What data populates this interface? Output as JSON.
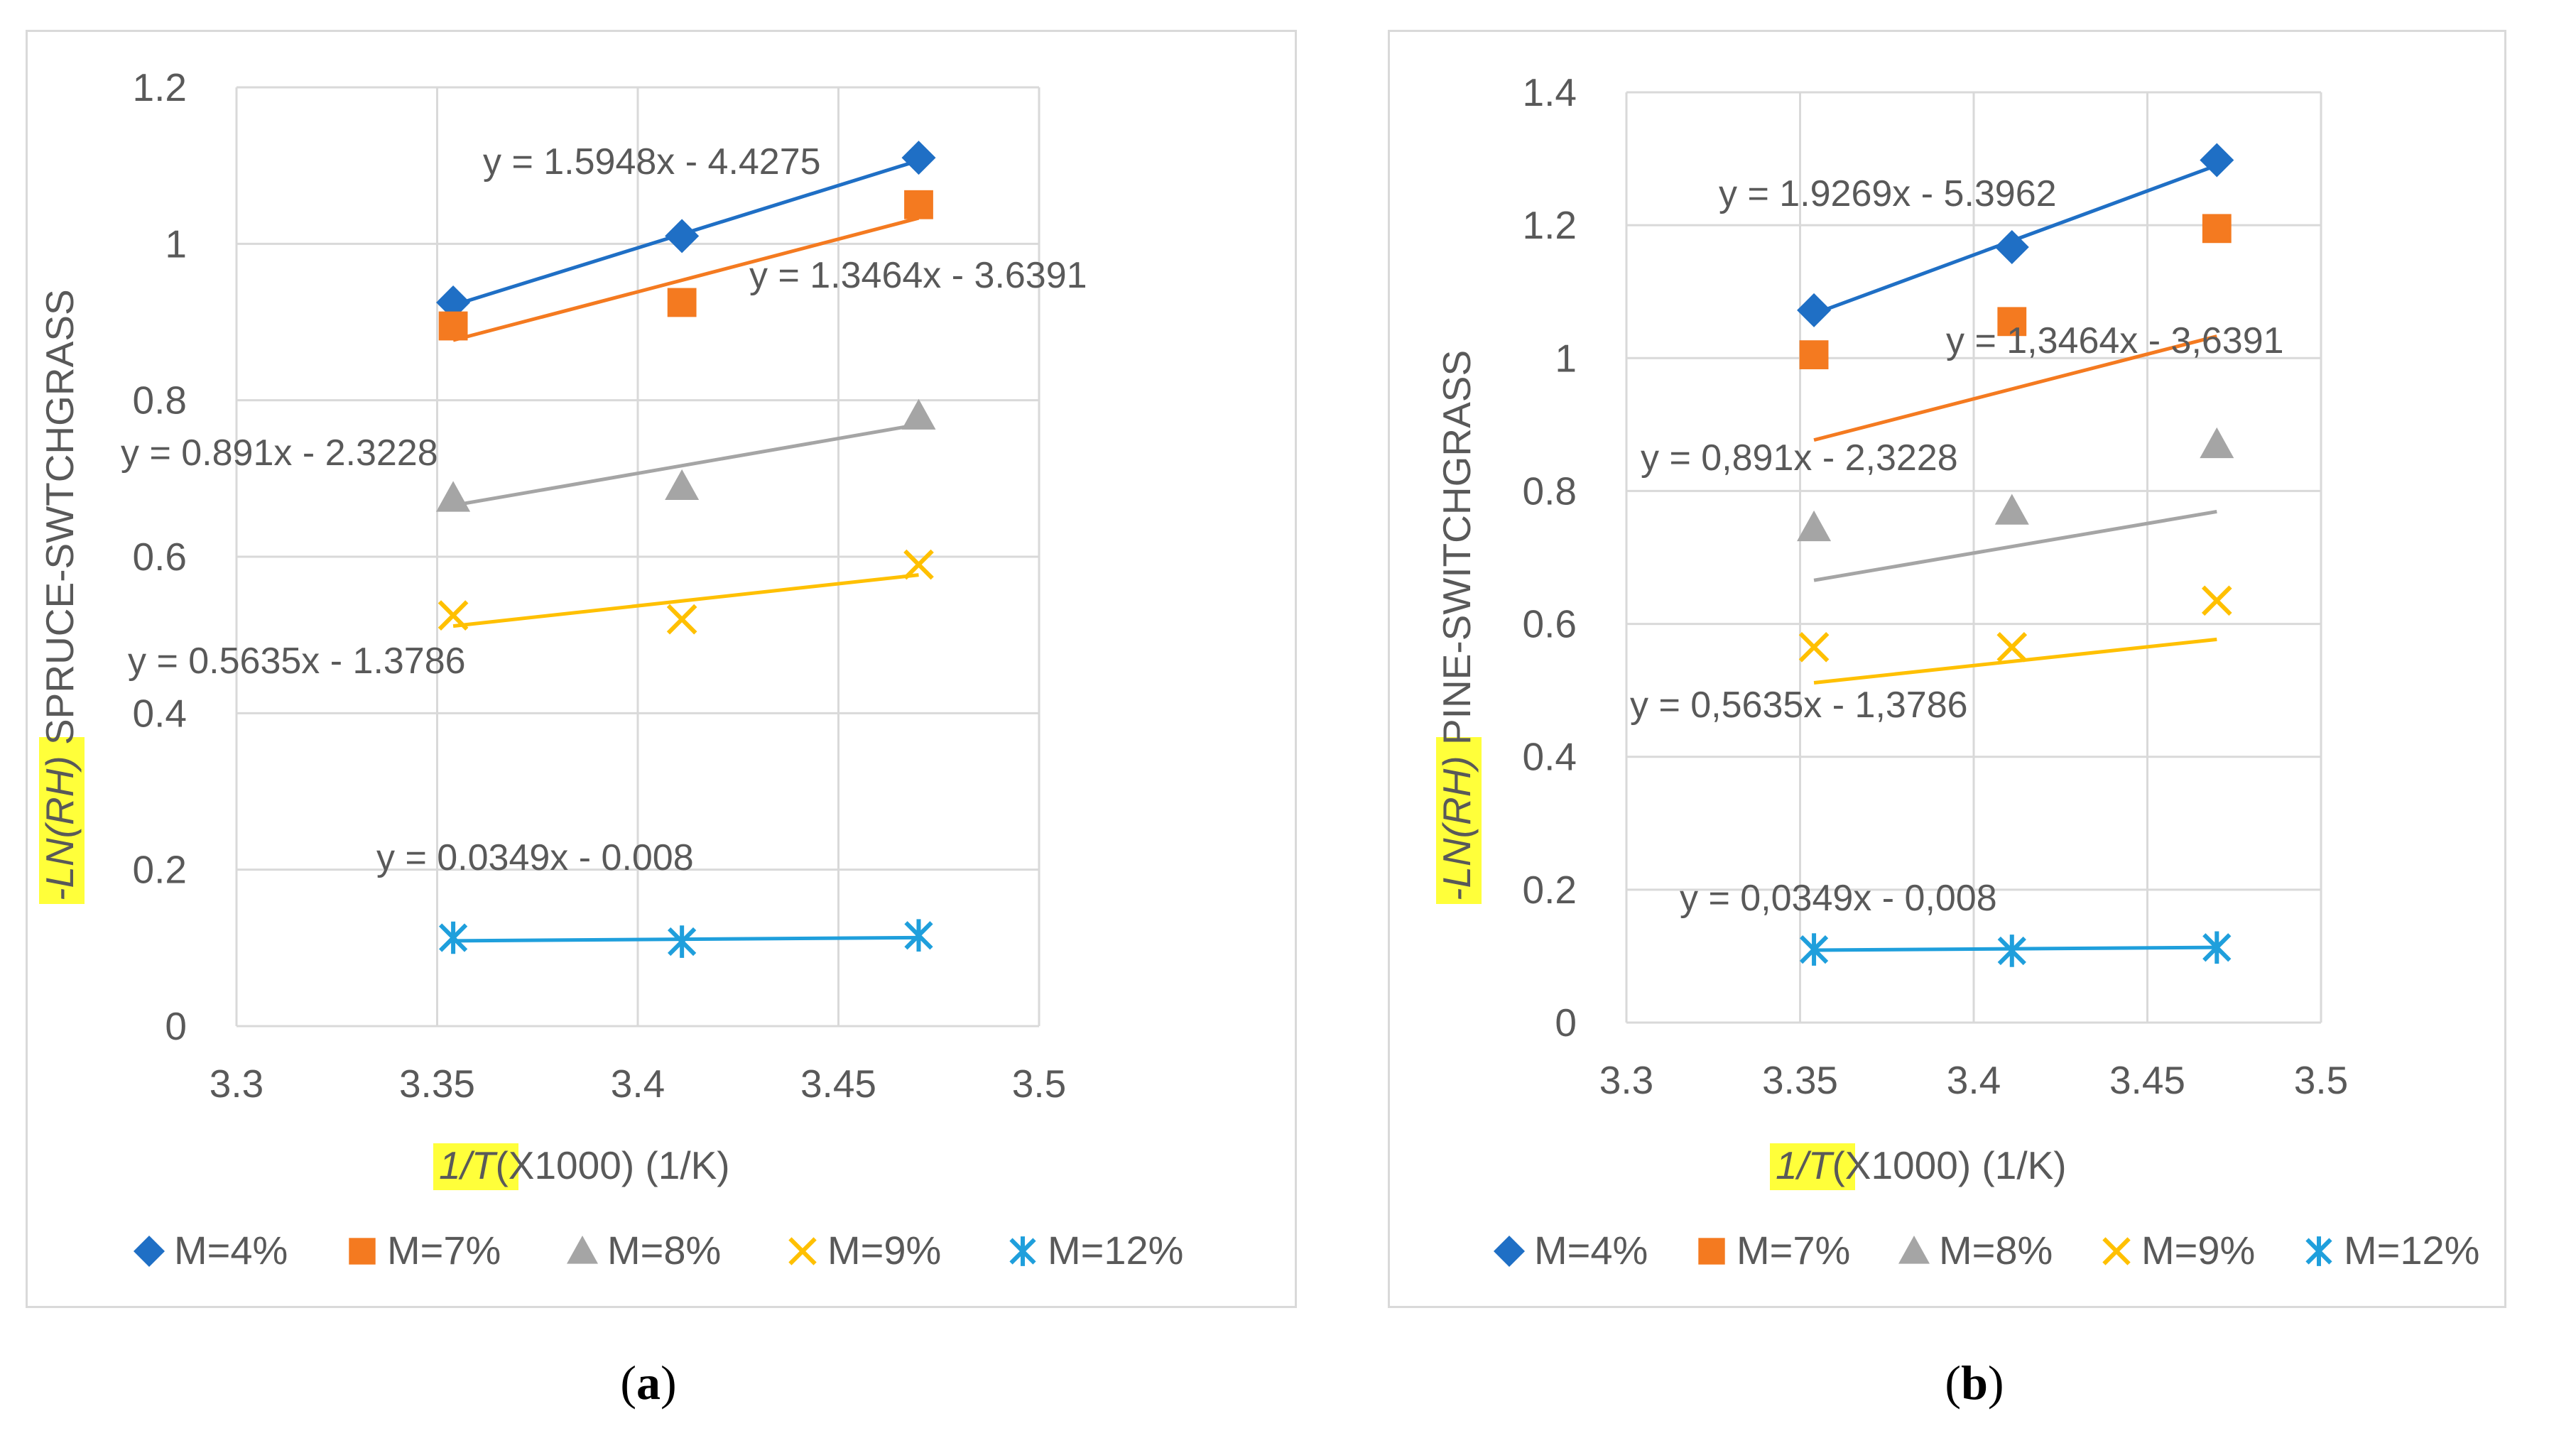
{
  "colors": {
    "m4": "#1f6fc5",
    "m7": "#f47a20",
    "m8": "#a5a5a5",
    "m9": "#ffc000",
    "m12": "#1f9fdc",
    "grid": "#d9d9d9",
    "highlight": "#ffff3a"
  },
  "chart_data": [
    {
      "type": "scatter",
      "panel": "a",
      "caption": {
        "open": "(",
        "letter": "a",
        "close": ")"
      },
      "xlabel": {
        "highlight": "1/T",
        "rest": "(X1000) (1/K)"
      },
      "ylabel": {
        "highlight": "-LN(RH)",
        "rest": " SPRUCE-SWTCHGRASS"
      },
      "xlim": [
        3.3,
        3.5
      ],
      "ylim": [
        0,
        1.2
      ],
      "xticks": [
        "3.3",
        "3.35",
        "3.4",
        "3.45",
        "3.5"
      ],
      "yticks": [
        "0",
        "0.2",
        "0.4",
        "0.6",
        "0.8",
        "1",
        "1.2"
      ],
      "x": [
        3.354,
        3.411,
        3.47
      ],
      "series": [
        {
          "name": "M=4%",
          "marker": "diamond",
          "values": [
            0.925,
            1.01,
            1.11
          ],
          "slope": 1.5948,
          "intercept": -4.4275,
          "equation": "y = 1.5948x - 4.4275"
        },
        {
          "name": "M=7%",
          "marker": "square",
          "values": [
            0.895,
            0.925,
            1.05
          ],
          "slope": 1.3464,
          "intercept": -3.6391,
          "equation": "y = 1.3464x - 3.6391"
        },
        {
          "name": "M=8%",
          "marker": "triangle",
          "values": [
            0.675,
            0.69,
            0.78
          ],
          "slope": 0.891,
          "intercept": -2.3228,
          "equation": "y = 0.891x - 2.3228"
        },
        {
          "name": "M=9%",
          "marker": "x",
          "values": [
            0.525,
            0.52,
            0.59
          ],
          "slope": 0.5635,
          "intercept": -1.3786,
          "equation": "y = 0.5635x - 1.3786"
        },
        {
          "name": "M=12%",
          "marker": "star",
          "values": [
            0.113,
            0.108,
            0.116
          ],
          "slope": 0.0349,
          "intercept": -0.008,
          "equation": "y = 0.0349x - 0.008"
        }
      ]
    },
    {
      "type": "scatter",
      "panel": "b",
      "caption": {
        "open": "(",
        "letter": "b",
        "close": ")"
      },
      "xlabel": {
        "highlight": "1/T",
        "rest": "(X1000) (1/K)"
      },
      "ylabel": {
        "highlight": "-LN(RH)",
        "rest": " PINE-SWITCHGRASS"
      },
      "xlim": [
        3.3,
        3.5
      ],
      "ylim": [
        0,
        1.4
      ],
      "xticks": [
        "3.3",
        "3.35",
        "3.4",
        "3.45",
        "3.5"
      ],
      "yticks": [
        "0",
        "0.2",
        "0.4",
        "0.6",
        "0.8",
        "1",
        "1.2",
        "1.4"
      ],
      "x": [
        3.354,
        3.411,
        3.47
      ],
      "series": [
        {
          "name": "M=4%",
          "marker": "diamond",
          "values": [
            1.072,
            1.167,
            1.298
          ],
          "slope": 1.9269,
          "intercept": -5.3962,
          "equation": "y = 1.9269x - 5.3962"
        },
        {
          "name": "M=7%",
          "marker": "square",
          "values": [
            1.005,
            1.055,
            1.195
          ],
          "slope": 1.3464,
          "intercept": -3.6391,
          "equation": "y = 1,3464x - 3,6391"
        },
        {
          "name": "M=8%",
          "marker": "triangle",
          "values": [
            0.745,
            0.77,
            0.87
          ],
          "slope": 0.891,
          "intercept": -2.3228,
          "equation": "y = 0,891x - 2,3228"
        },
        {
          "name": "M=9%",
          "marker": "x",
          "values": [
            0.565,
            0.565,
            0.635
          ],
          "slope": 0.5635,
          "intercept": -1.3786,
          "equation": "y = 0,5635x - 1,3786"
        },
        {
          "name": "M=12%",
          "marker": "star",
          "values": [
            0.11,
            0.108,
            0.113
          ],
          "slope": 0.0349,
          "intercept": -0.008,
          "equation": "y = 0,0349x - 0,008"
        }
      ]
    }
  ]
}
